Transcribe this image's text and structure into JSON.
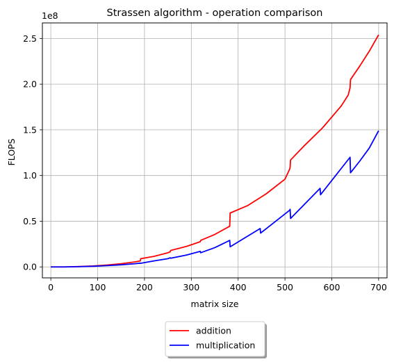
{
  "chart_data": {
    "type": "line",
    "title": "Strassen algorithm - operation comparison",
    "xlabel": "matrix size",
    "ylabel": "FLOPS",
    "y_scale_label": "1e8",
    "xlim": [
      -18,
      718
    ],
    "ylim": [
      -12000000,
      267000000
    ],
    "x_ticks": [
      0,
      100,
      200,
      300,
      400,
      500,
      600,
      700
    ],
    "x_tick_labels": [
      "0",
      "100",
      "200",
      "300",
      "400",
      "500",
      "600",
      "700"
    ],
    "y_ticks": [
      0,
      50000000,
      100000000,
      150000000,
      200000000,
      250000000
    ],
    "y_tick_labels": [
      "0.0",
      "0.5",
      "1.0",
      "1.5",
      "2.0",
      "2.5"
    ],
    "grid": true,
    "legend_position": "below-center",
    "series": [
      {
        "name": "addition",
        "color": "#ff0000",
        "x": [
          0,
          30,
          60,
          90,
          120,
          150,
          180,
          191,
          192,
          220,
          250,
          255,
          256,
          290,
          319,
          320,
          350,
          382,
          383,
          420,
          460,
          500,
          510,
          511,
          512,
          540,
          580,
          620,
          635,
          639,
          640,
          660,
          680,
          700
        ],
        "y": [
          0,
          0,
          400000,
          1000000,
          2000000,
          3500000,
          5500000,
          6500000,
          9000000,
          11500000,
          15500000,
          16500000,
          18000000,
          22500000,
          27500000,
          29000000,
          35500000,
          44500000,
          59000000,
          67000000,
          80000000,
          96000000,
          107000000,
          109000000,
          117000000,
          132000000,
          152000000,
          176000000,
          188000000,
          196000000,
          205000000,
          220000000,
          236000000,
          254000000
        ]
      },
      {
        "name": "multiplication",
        "color": "#0000ff",
        "x": [
          0,
          30,
          60,
          90,
          120,
          150,
          180,
          191,
          192,
          220,
          250,
          255,
          256,
          290,
          319,
          320,
          350,
          382,
          383,
          447,
          448,
          510,
          511,
          512,
          575,
          576,
          639,
          640,
          660,
          680,
          700
        ],
        "y": [
          0,
          0,
          250000,
          700000,
          1400000,
          2300000,
          3500000,
          4100000,
          4000000,
          6500000,
          9000000,
          10000000,
          9500000,
          13000000,
          17000000,
          15500000,
          21000000,
          29000000,
          22000000,
          42000000,
          37000000,
          62000000,
          63000000,
          53000000,
          86000000,
          79000000,
          120000000,
          103000000,
          116000000,
          130000000,
          149000000
        ]
      }
    ]
  }
}
